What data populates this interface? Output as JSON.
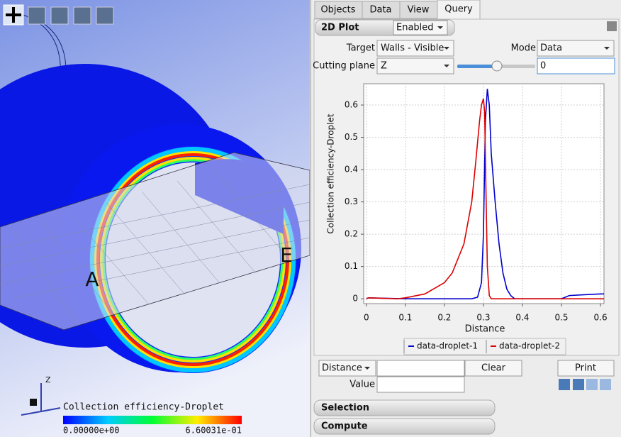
{
  "toolbar": {
    "viewport_labels": [
      "A",
      "E"
    ],
    "axis_label": "Z"
  },
  "colorbar": {
    "title": "Collection efficiency-Droplet",
    "min": "0.00000e+00",
    "max": "6.60031e-01"
  },
  "tabs": [
    "Objects",
    "Data",
    "View",
    "Query"
  ],
  "panel": {
    "title": "2D Plot",
    "enabled": "Enabled",
    "target_label": "Target",
    "target": "Walls - Visible",
    "mode_label": "Mode",
    "mode": "Data",
    "cutting_plane_label": "Cutting plane",
    "cutting_plane": "Z",
    "cut_value": "0"
  },
  "chart_data": {
    "type": "line",
    "x_label": "Distance",
    "y_label": "Collection efficiency-Droplet",
    "xlim": [
      -0.007,
      0.609
    ],
    "ylim": [
      -0.015,
      0.666
    ],
    "xticks": [
      0,
      0.1,
      0.2,
      0.3,
      0.4,
      0.5,
      0.6
    ],
    "yticks": [
      0,
      0.1,
      0.2,
      0.3,
      0.4,
      0.5,
      0.6
    ],
    "grid": true,
    "legend": "bottom",
    "series": [
      {
        "name": "data-droplet-1",
        "color": "#0000cc",
        "x": [
          0,
          0.005,
          0.1,
          0.2,
          0.27,
          0.285,
          0.295,
          0.3,
          0.305,
          0.31,
          0.315,
          0.32,
          0.33,
          0.34,
          0.35,
          0.36,
          0.37,
          0.38,
          0.5,
          0.52,
          0.55,
          0.6,
          0.609
        ],
        "values": [
          0,
          0.003,
          0,
          0,
          0,
          0.005,
          0.05,
          0.2,
          0.55,
          0.65,
          0.6,
          0.45,
          0.3,
          0.17,
          0.08,
          0.03,
          0.01,
          0,
          0,
          0.01,
          0.012,
          0.015,
          0.015
        ]
      },
      {
        "name": "data-droplet-2",
        "color": "#dd0000",
        "x": [
          0,
          0.005,
          0.08,
          0.1,
          0.15,
          0.2,
          0.22,
          0.25,
          0.27,
          0.28,
          0.29,
          0.295,
          0.3,
          0.303,
          0.307,
          0.31,
          0.315,
          0.32,
          0.609
        ],
        "values": [
          0,
          0.003,
          0,
          0.003,
          0.015,
          0.05,
          0.08,
          0.17,
          0.3,
          0.42,
          0.55,
          0.6,
          0.62,
          0.58,
          0.3,
          0.1,
          0.01,
          0,
          0
        ]
      }
    ]
  },
  "controls": {
    "distance": "Distance",
    "clear": "Clear",
    "print": "Print",
    "value": "Value"
  },
  "sections": [
    "Selection",
    "Compute"
  ]
}
